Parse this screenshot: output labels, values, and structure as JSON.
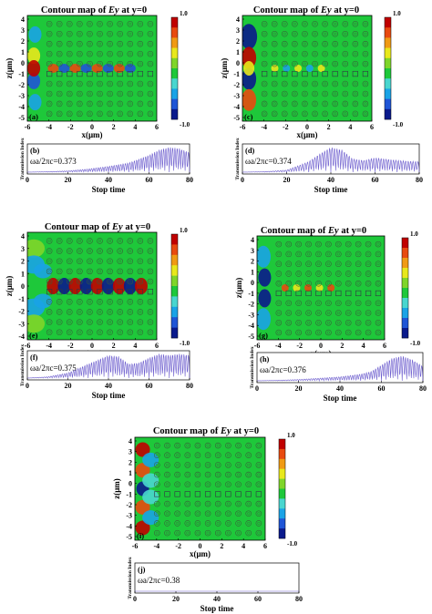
{
  "colorbar": {
    "max_label": "1.0",
    "min_label": "-1.0",
    "colors": [
      "#0a1a8c",
      "#1f55d6",
      "#1aa3e6",
      "#49d6cf",
      "#1ec83a",
      "#7fd52a",
      "#e8e81c",
      "#f09a14",
      "#e84a10",
      "#c00000"
    ]
  },
  "panels": [
    {
      "id": "a",
      "title": "Contour map of Ey at y=0",
      "title_base": "Contour map of ",
      "title_var": "Ey",
      "title_rest": " at y=0",
      "map_label": "(a)",
      "trans_label": "(b)",
      "freq_text": "ωa/2πc=0.373",
      "xticks": [
        "-6",
        "-4",
        "-2",
        "0",
        "2",
        "4",
        "6"
      ],
      "zticks": [
        "4",
        "3",
        "2",
        "1",
        "0",
        "-1",
        "-2",
        "-3",
        "-4",
        "-5"
      ],
      "xlabel": "x(μm)",
      "zlabel": "z(μm)",
      "trans_ylabel": "Transmission Index",
      "stop_xticks": [
        "0",
        "20",
        "40",
        "60",
        "80"
      ],
      "stop_label": "Stop time",
      "chart_data": {
        "type": "line",
        "title": "",
        "xlabel": "Stop time",
        "ylabel": "Transmission Index",
        "x": [
          0,
          10,
          20,
          30,
          40,
          50,
          55,
          60,
          65,
          70,
          75,
          80
        ],
        "y": [
          0,
          0.02,
          0.05,
          0.12,
          0.22,
          0.35,
          0.5,
          0.65,
          0.85,
          0.95,
          0.9,
          0.75
        ]
      }
    },
    {
      "id": "c",
      "title": "Contour map of Ey at y=0",
      "title_base": "Contour map of ",
      "title_var": "Ey",
      "title_rest": " at y=0",
      "map_label": "(c)",
      "trans_label": "(d)",
      "freq_text": "ωa/2πc=0.374",
      "xticks": [
        "-6",
        "-4",
        "-2",
        "0",
        "2",
        "4",
        "6"
      ],
      "zticks": [
        "4",
        "3",
        "2",
        "1",
        "0",
        "-1",
        "-2",
        "-3",
        "-4",
        "-5"
      ],
      "xlabel": "x(μm)",
      "zlabel": "z(μm)",
      "trans_ylabel": "Transmission Index",
      "stop_xticks": [
        "0",
        "20",
        "40",
        "60",
        "80"
      ],
      "stop_label": "Stop time",
      "chart_data": {
        "type": "line",
        "title": "",
        "xlabel": "Stop time",
        "ylabel": "Transmission Index",
        "x": [
          0,
          10,
          20,
          30,
          35,
          40,
          45,
          50,
          55,
          60,
          65,
          70,
          75,
          80
        ],
        "y": [
          0,
          0.02,
          0.08,
          0.4,
          0.7,
          0.95,
          0.85,
          0.5,
          0.45,
          0.55,
          0.5,
          0.45,
          0.42,
          0.4
        ]
      }
    },
    {
      "id": "e",
      "title": "Contour map of Ey at y=0",
      "title_base": "Contour map of ",
      "title_var": "Ey",
      "title_rest": " at y=0",
      "map_label": "(e)",
      "trans_label": "(f)",
      "freq_text": "ωa/2πc=0.375",
      "xticks": [
        "-6",
        "-4",
        "-2",
        "0",
        "2",
        "4",
        "6"
      ],
      "zticks": [
        "4",
        "3",
        "2",
        "1",
        "0",
        "-1",
        "-2",
        "-3",
        "-4"
      ],
      "xlabel": "x(μm)",
      "zlabel": "z(μm)",
      "trans_ylabel": "Transmission Index",
      "stop_xticks": [
        "0",
        "20",
        "40",
        "60",
        "80"
      ],
      "stop_label": "Stop time",
      "chart_data": {
        "type": "line",
        "title": "",
        "xlabel": "Stop time",
        "ylabel": "Transmission Index",
        "x": [
          0,
          10,
          20,
          30,
          40,
          45,
          50,
          55,
          60,
          65,
          70,
          75,
          80
        ],
        "y": [
          0,
          0.05,
          0.2,
          0.55,
          0.9,
          0.85,
          0.55,
          0.6,
          0.8,
          0.95,
          0.9,
          0.95,
          0.9
        ]
      }
    },
    {
      "id": "g",
      "title": "Contour map of Ey at y=0",
      "title_base": "Contour map of ",
      "title_var": "Ey",
      "title_rest": " at y=0",
      "map_label": "(g)",
      "trans_label": "(h)",
      "freq_text": "ωa/2πc=0.376",
      "xticks": [
        "-6",
        "-4",
        "-2",
        "0",
        "2",
        "4",
        "6"
      ],
      "zticks": [
        "4",
        "3",
        "2",
        "1",
        "0",
        "-1",
        "-2",
        "-3",
        "-4",
        "-5"
      ],
      "xlabel": "x(μm)",
      "zlabel": "z(μm)",
      "trans_ylabel": "Transmission Index",
      "stop_xticks": [
        "0",
        "20",
        "40",
        "60",
        "80"
      ],
      "stop_label": "Stop time",
      "chart_data": {
        "type": "line",
        "title": "",
        "xlabel": "Stop time",
        "ylabel": "Transmission Index",
        "x": [
          0,
          10,
          20,
          30,
          40,
          50,
          55,
          60,
          65,
          70,
          75,
          80
        ],
        "y": [
          0,
          0.02,
          0.05,
          0.1,
          0.15,
          0.25,
          0.35,
          0.6,
          0.85,
          0.95,
          0.8,
          0.55
        ]
      }
    },
    {
      "id": "i",
      "title": "Contour map of Ey at y=0",
      "title_base": "Contour map of ",
      "title_var": "Ey",
      "title_rest": " at y=0",
      "map_label": "(i)",
      "trans_label": "(j)",
      "freq_text": "ωa/2πc=0.38",
      "xticks": [
        "-6",
        "-4",
        "-2",
        "0",
        "2",
        "4",
        "6"
      ],
      "zticks": [
        "4",
        "3",
        "2",
        "1",
        "0",
        "-1",
        "-2",
        "-3",
        "-4",
        "-5"
      ],
      "xlabel": "x(μm)",
      "zlabel": "z(μm)",
      "trans_ylabel": "Transmission Index",
      "stop_xticks": [
        "0",
        "20",
        "40",
        "60",
        "80"
      ],
      "stop_label": "Stop time",
      "chart_data": {
        "type": "line",
        "title": "",
        "xlabel": "Stop time",
        "ylabel": "Transmission Index",
        "x": [
          0,
          20,
          40,
          60,
          80
        ],
        "y": [
          0,
          0,
          0,
          0,
          0
        ]
      }
    }
  ]
}
